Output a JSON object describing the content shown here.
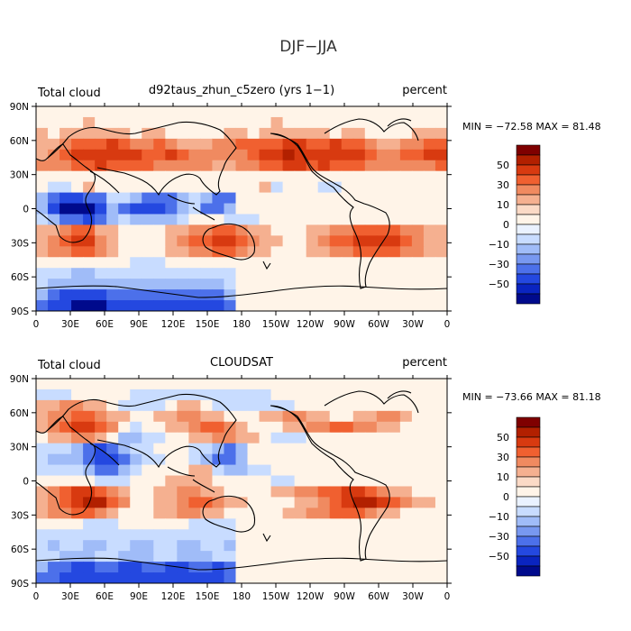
{
  "title": "DJF−JJA",
  "colorbar_labels": [
    "50",
    "30",
    "10",
    "0",
    "−10",
    "−30",
    "−50"
  ],
  "colorbar_colors": [
    "#7f0000",
    "#b22000",
    "#d83a10",
    "#f06030",
    "#f08a60",
    "#f5b090",
    "#fbdac6",
    "#fff4e8",
    "#eaf2ff",
    "#c8dcff",
    "#a0bcf8",
    "#7898f0",
    "#4c70ea",
    "#2448e0",
    "#0a24c0",
    "#000a8c"
  ],
  "chart_data": [
    {
      "type": "heatmap",
      "left_title": "Total cloud",
      "center_title": "d92taus_zhun_c5zero (yrs 1−1)",
      "units": "percent",
      "stats": "MIN = −72.58 MAX =  81.48",
      "min": -72.58,
      "max": 81.48,
      "xticks": [
        "0",
        "30E",
        "60E",
        "90E",
        "120E",
        "150E",
        "180",
        "150W",
        "120W",
        "90W",
        "60W",
        "30W",
        "0"
      ],
      "yticks": [
        "90N",
        "60N",
        "30N",
        "0",
        "30S",
        "60S",
        "90S"
      ],
      "xlim": [
        0,
        360
      ],
      "ylim": [
        -90,
        90
      ],
      "grid_rows": [
        "00000000000000000000000000000000000",
        "00001000000000000000100000000000000",
        "10111111011000001101111110110000111",
        "11233343223211122333344334332112233",
        "12344444433432222234454444443223344",
        "22233433332222211223344343332222223",
        "00000000000000000000000000000000000",
        "0-1-1--1-000000000000001-1000-1-1-0",
        "-2-3-4-4-3-3-1-1-2-3-3-3-2-1-2-3-3-",
        "-2-4-5-5-5-4-2-3-4-4-4-3-2-1-3-3-2-",
        "-1-2-3-3-4-3-2-1-2-2-2-2-1000-1-1-1",
        "11233110000112233211000112233332211",
        "12344210000123344321100123344443211",
        "12233210000112233211000112233332211",
        "00000000-1-1-1000000000000000000000",
        "-1-1-1-2-2-1-1-1-1-1-1-1-1-1-1-1-1-",
        "-1-2-2-2-2-2-2-2-2-2-2-2-2-2-2-2-1-",
        "-2-3-4-4-4-4-3-3-3-3-3-3-3-3-3-3-2-",
        "-3-4-4-5-5-5-4-4-4-4-4-4-4-4-4-4-3-"
      ]
    },
    {
      "type": "heatmap",
      "left_title": "Total cloud",
      "center_title": "CLOUDSAT",
      "units": "percent",
      "stats": "MIN = −73.66 MAX =  81.18",
      "min": -73.66,
      "max": 81.18,
      "xticks": [
        "0",
        "30E",
        "60E",
        "90E",
        "120E",
        "150E",
        "180",
        "150W",
        "120W",
        "90W",
        "60W",
        "30W",
        "0"
      ],
      "yticks": [
        "90N",
        "60N",
        "30N",
        "0",
        "30S",
        "60S",
        "90S"
      ],
      "xlim": [
        0,
        360
      ],
      "ylim": [
        -90,
        90
      ],
      "grid_rows": [
        "00000000000000000000000000000000000",
        "-1-1-100000-1-1-1-1-1-1-1-1-1-1-1-1",
        "1122110-1-1-1-10110-1-1-1-1-1-1-10",
        "12233211001122110001122110011221",
        "12344320-1001123321000112233221100",
        "0112210-2-2-1-1001122110-1-1-1000",
        "-1-1-1-2-3-4-3-2-1-1000-1-1-2-3-2-",
        "-1-2-2-2-3-4-4-3-2-1-100-1-2-3-3-2",
        "-1-1-1-1-2-3-3-2-1000011-1-2-2-1-1",
        "00000-1-1-1000111100000-1-1000",
        "12344321001122110000112233443211",
        "1234553200112332110000112345543211",
        "12233210001122110000011223332110",
        "0000-1-1-1000000-1-1-1-1000000000",
        "-1-1-1-1-1-1-1-1-1-1-1-1-1-1-1-1-1-",
        "-1-2-1-1-2-2-1-1-2-2-1-1-2-2-1-1-2-",
        "-1-1-2-2-2-1-1-2-2-2-1-1-2-2-2-1-1-",
        "-2-3-3-4-4-3-3-4-4-3-3-4-4-3-3-4-3-",
        "-3-3-4-4-4-4-4-4-4-4-4-4-4-4-4-4-3-"
      ]
    }
  ]
}
